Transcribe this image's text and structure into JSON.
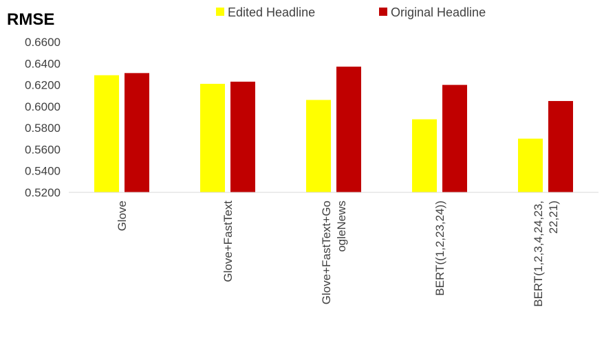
{
  "chart_data": {
    "type": "bar",
    "ylabel": "RMSE",
    "ylim": [
      0.52,
      0.66
    ],
    "yticks": [
      "0.6600",
      "0.6400",
      "0.6200",
      "0.6000",
      "0.5800",
      "0.5600",
      "0.5400",
      "0.5200"
    ],
    "ytick_values": [
      0.66,
      0.64,
      0.62,
      0.6,
      0.58,
      0.56,
      0.54,
      0.52
    ],
    "categories": [
      [
        "Glove"
      ],
      [
        "Glove+FastText"
      ],
      [
        "Glove+FastText+Go",
        "ogleNews"
      ],
      [
        "BERT((1,2,23,24))"
      ],
      [
        "BERT(1,2,3,4,24,23,",
        "22,21)"
      ]
    ],
    "legend_position": "top",
    "grid": false,
    "series": [
      {
        "name": "Edited Headline",
        "color": "#FFFF00",
        "values": [
          0.629,
          0.621,
          0.606,
          0.588,
          0.57
        ]
      },
      {
        "name": "Original Headline",
        "color": "#C00000",
        "values": [
          0.631,
          0.623,
          0.637,
          0.62,
          0.605
        ]
      }
    ]
  }
}
